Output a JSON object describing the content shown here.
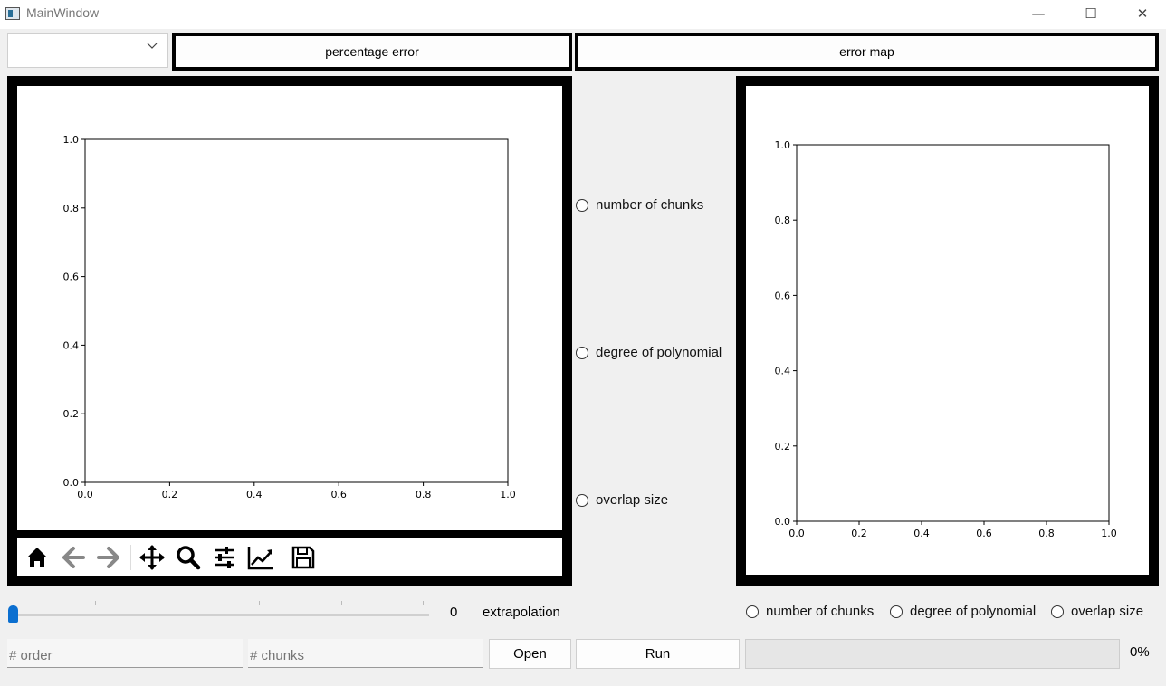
{
  "window": {
    "title": "MainWindow",
    "minimize": "—",
    "maximize": "☐",
    "close": "✕"
  },
  "header": {
    "combo_value": "",
    "percentage_error_label": "percentage error",
    "error_map_label": "error map"
  },
  "left_plot": {
    "x_ticks": [
      "0.0",
      "0.2",
      "0.4",
      "0.6",
      "0.8",
      "1.0"
    ],
    "y_ticks": [
      "0.0",
      "0.2",
      "0.4",
      "0.6",
      "0.8",
      "1.0"
    ]
  },
  "right_plot": {
    "x_ticks": [
      "0.0",
      "0.2",
      "0.4",
      "0.6",
      "0.8",
      "1.0"
    ],
    "y_ticks": [
      "0.0",
      "0.2",
      "0.4",
      "0.6",
      "0.8",
      "1.0"
    ]
  },
  "chart_data": [
    {
      "type": "line",
      "series": [],
      "xlim": [
        0,
        1
      ],
      "ylim": [
        0,
        1
      ],
      "grid": false
    },
    {
      "type": "heatmap",
      "series": [],
      "xlim": [
        0,
        1
      ],
      "ylim": [
        0,
        1
      ],
      "grid": false
    }
  ],
  "toolbar": {
    "icons": [
      "home-icon",
      "back-arrow-icon",
      "forward-arrow-icon",
      "pan-icon",
      "zoom-icon",
      "configure-subplots-icon",
      "edit-axis-icon",
      "save-icon"
    ]
  },
  "middle_radios": {
    "chunks": "number of chunks",
    "degree": "degree of polynomial",
    "overlap": "overlap size"
  },
  "slider": {
    "value_text": "0",
    "value": 0,
    "label": "extrapolation"
  },
  "bottom_radios": {
    "chunks": "number of chunks",
    "degree": "degree of polynomial",
    "overlap": "overlap size"
  },
  "inputs": {
    "order_placeholder": "# order",
    "chunks_placeholder": "# chunks"
  },
  "buttons": {
    "open": "Open",
    "run": "Run"
  },
  "progress": {
    "value": 0,
    "text": "0%",
    "fill_color": "#06b025"
  }
}
